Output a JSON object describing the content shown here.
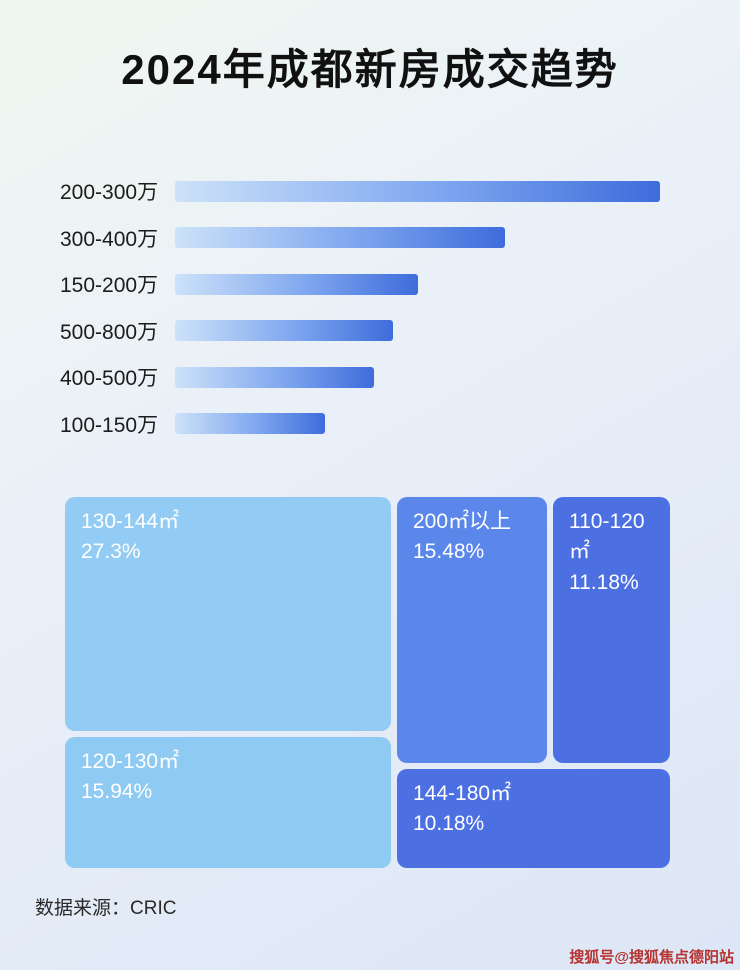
{
  "page": {
    "title": "2024年成都新房成交趋势",
    "source_label": "数据来源：CRIC",
    "watermark": "搜狐号@搜狐焦点德阳站"
  },
  "colors": {
    "background_top": "#f0f7f1",
    "background_mid": "#e9eff8",
    "background_bottom": "#dce6f6",
    "title_color": "#111111",
    "bar_gradient_start": "#cde2f9",
    "bar_gradient_end": "#3e6cdb",
    "watermark_color": "#b53431"
  },
  "chart_data": [
    {
      "type": "bar",
      "orientation": "horizontal",
      "title": "",
      "categories": [
        "200-300万",
        "300-400万",
        "150-200万",
        "500-800万",
        "400-500万",
        "100-150万"
      ],
      "values": [
        100,
        68,
        50,
        45,
        41,
        31
      ],
      "value_note": "relative bar lengths as % of longest bar; no numeric axis labels shown in image",
      "legend": "none",
      "grid": false
    },
    {
      "type": "treemap",
      "title": "",
      "items": [
        {
          "label": "130-144㎡",
          "display": "27.3%",
          "value": 27.3,
          "color": "#92ccf4"
        },
        {
          "label": "200㎡以上",
          "display": "15.48%",
          "value": 15.48,
          "color": "#5b87ea"
        },
        {
          "label": "110-120㎡",
          "display": "11.18%",
          "value": 11.18,
          "color": "#4c6fe2"
        },
        {
          "label": "120-130㎡",
          "display": "15.94%",
          "value": 15.94,
          "color": "#8fcaf3"
        },
        {
          "label": "144-180㎡",
          "display": "10.18%",
          "value": 10.18,
          "color": "#4c6fe2"
        }
      ]
    }
  ]
}
